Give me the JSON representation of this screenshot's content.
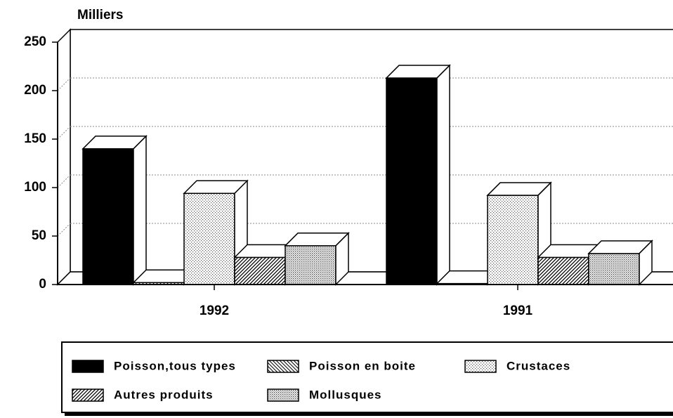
{
  "chart_data": {
    "type": "bar3d",
    "y_axis_label": "Milliers",
    "categories": [
      "1992",
      "1991"
    ],
    "series": [
      {
        "name": "Poisson,tous types",
        "color": "#000000",
        "pattern": "solid",
        "values": [
          140,
          213
        ]
      },
      {
        "name": "Poisson en boite",
        "color": "#000000",
        "pattern": "backslash",
        "values": [
          2,
          1
        ]
      },
      {
        "name": "Crustaces",
        "color": "#b0b0b0",
        "pattern": "dots",
        "values": [
          94,
          92
        ]
      },
      {
        "name": "Autres produits",
        "color": "#000000",
        "pattern": "slash",
        "values": [
          28,
          28
        ]
      },
      {
        "name": "Mollusques",
        "color": "#909090",
        "pattern": "dots-dense",
        "values": [
          40,
          32
        ]
      }
    ],
    "ylim": [
      0,
      250
    ],
    "yticks": [
      0,
      50,
      100,
      150,
      200,
      250
    ],
    "grid": true
  }
}
